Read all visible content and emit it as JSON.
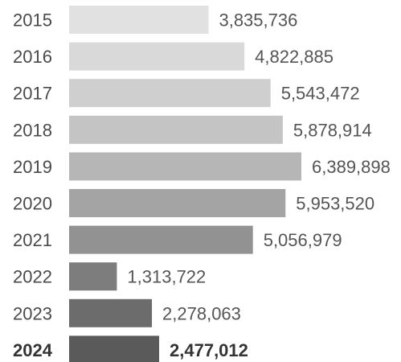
{
  "chart_data": {
    "type": "bar",
    "orientation": "horizontal",
    "title": "",
    "xlabel": "",
    "ylabel": "",
    "categories": [
      "2015",
      "2016",
      "2017",
      "2018",
      "2019",
      "2020",
      "2021",
      "2022",
      "2023",
      "2024"
    ],
    "values": [
      3835736,
      4822885,
      5543472,
      5878914,
      6389898,
      5953520,
      5056979,
      1313722,
      2278063,
      2477012
    ],
    "value_labels": [
      "3,835,736",
      "4,822,885",
      "5,543,472",
      "5,878,914",
      "6,389,898",
      "5,953,520",
      "5,056,979",
      "1,313,722",
      "2,278,063",
      "2,477,012"
    ],
    "colors": [
      "#e1e1e1",
      "#d9d9d9",
      "#cfcfcf",
      "#c4c4c4",
      "#b6b6b6",
      "#a4a4a4",
      "#929292",
      "#7d7d7d",
      "#6c6c6c",
      "#5a5a5a"
    ],
    "highlight_index": 9,
    "grid": false,
    "legend": "none"
  }
}
